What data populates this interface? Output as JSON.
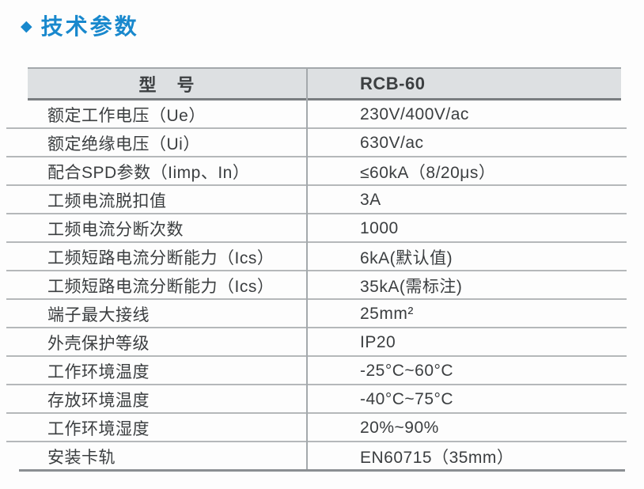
{
  "colors": {
    "accent_blue": "#1888cd",
    "header_bg": "#dde0e2",
    "text_dark": "#3b3e40"
  },
  "section": {
    "bullet_icon": "◆",
    "title": "技术参数"
  },
  "table": {
    "header": {
      "model_label": "型　号",
      "model_value": "RCB-60"
    },
    "rows": [
      {
        "label": "额定工作电压（Ue）",
        "value": "230V/400V/ac"
      },
      {
        "label": "额定绝缘电压（Ui）",
        "value": "630V/ac"
      },
      {
        "label": "配合SPD参数（Iimp、In）",
        "value": "≤60kA（8/20μs）"
      },
      {
        "label": "工频电流脱扣值",
        "value": "3A"
      },
      {
        "label": "工频电流分断次数",
        "value": "1000"
      },
      {
        "label": "工频短路电流分断能力（Ics）",
        "value": "6kA(默认值)"
      },
      {
        "label": "工频短路电流分断能力（Ics）",
        "value": "35kA(需标注)"
      },
      {
        "label": "端子最大接线",
        "value": "25mm²"
      },
      {
        "label": "外壳保护等级",
        "value": "IP20"
      },
      {
        "label": "工作环境温度",
        "value": "-25°C~60°C"
      },
      {
        "label": "存放环境温度",
        "value": "-40°C~75°C"
      },
      {
        "label": "工作环境湿度",
        "value": "20%~90%"
      },
      {
        "label": "安装卡轨",
        "value": "EN60715（35mm）"
      }
    ]
  }
}
